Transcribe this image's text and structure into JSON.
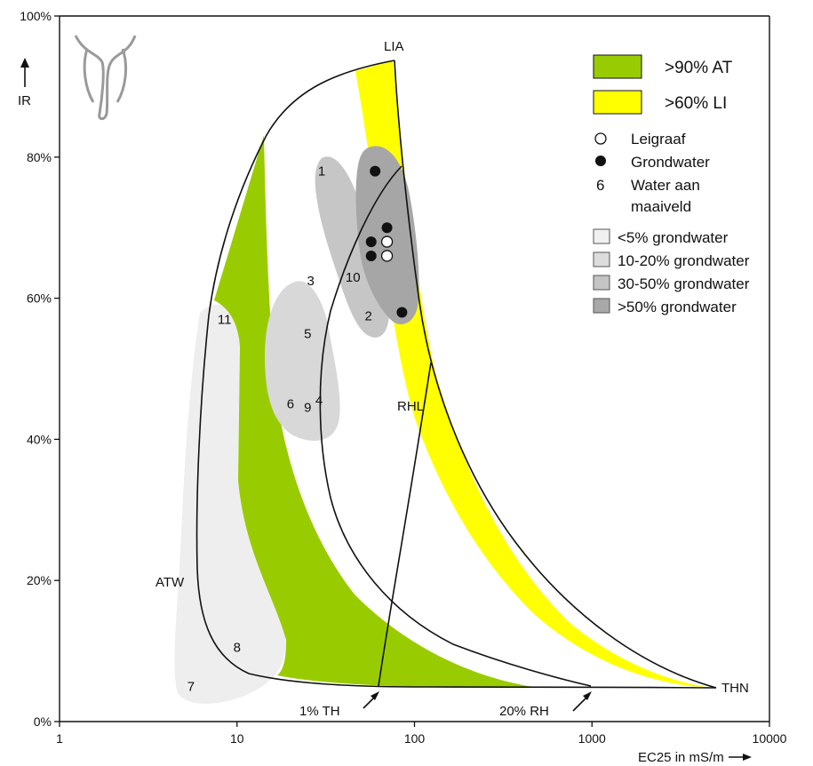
{
  "chart_data": {
    "type": "scatter",
    "x_scale": "log",
    "xlim": [
      1,
      10000
    ],
    "ylim": [
      0,
      100
    ],
    "grid": false,
    "legend_position": "top-right",
    "x_ticks": [
      "1",
      "10",
      "100",
      "1000",
      "10000"
    ],
    "y_ticks": [
      "0%",
      "20%",
      "40%",
      "60%",
      "80%",
      "100%"
    ],
    "xlabel": "EC25 in mS/m",
    "ylabel": "IR",
    "reference_points": [
      {
        "label": "LIA",
        "x": 80,
        "y": 94
      },
      {
        "label": "ATW",
        "x": 7.5,
        "y": 20
      },
      {
        "label": "THN",
        "x": 4600,
        "y": 5
      },
      {
        "label": "RHL",
        "x": 100,
        "y": 48
      }
    ],
    "line_annotations": [
      "1% TH",
      "20% RH"
    ],
    "groundwater_points": [
      {
        "x": 60,
        "y": 78
      },
      {
        "x": 70,
        "y": 70
      },
      {
        "x": 57,
        "y": 68
      },
      {
        "x": 57,
        "y": 66
      },
      {
        "x": 85,
        "y": 58
      }
    ],
    "leigraaf_points": [
      {
        "x": 70,
        "y": 68
      },
      {
        "x": 70,
        "y": 66
      }
    ],
    "surface_water_samples": [
      {
        "label": "1",
        "x": 30,
        "y": 78
      },
      {
        "label": "10",
        "x": 45,
        "y": 63
      },
      {
        "label": "2",
        "x": 55,
        "y": 57.5
      },
      {
        "label": "3",
        "x": 26,
        "y": 62.5
      },
      {
        "label": "5",
        "x": 25,
        "y": 55
      },
      {
        "label": "4",
        "x": 29,
        "y": 45.5
      },
      {
        "label": "6",
        "x": 20,
        "y": 45
      },
      {
        "label": "9",
        "x": 25,
        "y": 44.5
      },
      {
        "label": "11",
        "x": 8.5,
        "y": 57
      },
      {
        "label": "8",
        "x": 10,
        "y": 10.5
      },
      {
        "label": "7",
        "x": 5.5,
        "y": 5
      }
    ],
    "legend": [
      {
        "label": ">90% AT",
        "color": "#99cc00"
      },
      {
        "label": ">60% LI",
        "color": "#ffff00"
      },
      {
        "label": "Leigraaf",
        "symbol": "open-circle"
      },
      {
        "label": "Grondwater",
        "symbol": "filled-circle"
      },
      {
        "label": "Water aan",
        "symbol": "6"
      },
      {
        "label": "maaiveld"
      },
      {
        "label": "<5% grondwater",
        "color": "#f0f0f0"
      },
      {
        "label": "10-20% grondwater",
        "color": "#dcdcdc"
      },
      {
        "label": "30-50% grondwater",
        "color": "#c4c4c4"
      },
      {
        "label": ">50% grondwater",
        "color": "#a8a8a8"
      }
    ]
  }
}
